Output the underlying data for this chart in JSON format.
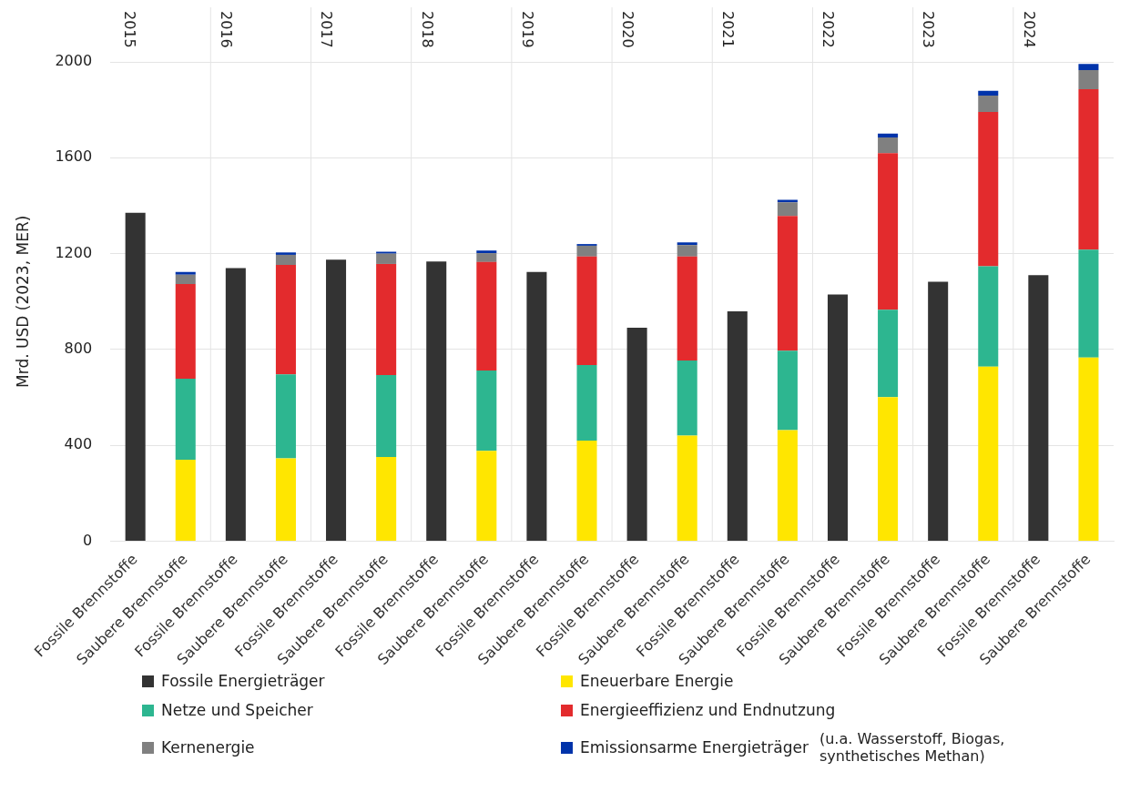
{
  "chart_data": {
    "type": "bar",
    "stacked": true,
    "ylabel": "Mrd. USD (2023, MER)",
    "categories": [
      "Fossile Brennstoffe",
      "Saubere Brennstoffe",
      "Fossile Brennstoffe",
      "Saubere Brennstoffe",
      "Fossile Brennstoffe",
      "Saubere Brennstoffe",
      "Fossile Brennstoffe",
      "Saubere Brennstoffe",
      "Fossile Brennstoffe",
      "Saubere Brennstoffe",
      "Fossile Brennstoffe",
      "Saubere Brennstoffe",
      "Fossile Brennstoffe",
      "Saubere Brennstoffe",
      "Fossile Brennstoffe",
      "Saubere Brennstoffe",
      "Fossile Brennstoffe",
      "Saubere Brennstoffe",
      "Fossile Brennstoffe",
      "Saubere Brennstoffe"
    ],
    "series": [
      {
        "name": "Fossile Energieträger",
        "color": "#333333",
        "values": [
          1370,
          null,
          1140,
          null,
          1175,
          null,
          1167,
          null,
          1124,
          null,
          891,
          null,
          959,
          null,
          1030,
          null,
          1083,
          null,
          1110,
          null
        ]
      },
      {
        "name": "Eneuerbare Energie",
        "color": "#ffe600",
        "values": [
          null,
          340,
          null,
          346,
          null,
          352,
          null,
          377,
          null,
          420,
          null,
          441,
          null,
          464,
          null,
          601,
          null,
          729,
          null,
          767
        ]
      },
      {
        "name": "Netze und Speicher",
        "color": "#2db690",
        "values": [
          null,
          338,
          null,
          350,
          null,
          341,
          null,
          335,
          null,
          315,
          null,
          313,
          null,
          331,
          null,
          365,
          null,
          418,
          null,
          450
        ]
      },
      {
        "name": "Energieeffizienz und Endnutzung",
        "color": "#e32b2d",
        "values": [
          null,
          395,
          null,
          457,
          null,
          464,
          null,
          453,
          null,
          453,
          null,
          434,
          null,
          562,
          null,
          653,
          null,
          644,
          null,
          669
        ]
      },
      {
        "name": "Kernenergie",
        "color": "#808080",
        "values": [
          null,
          39,
          null,
          42,
          null,
          43,
          null,
          37,
          null,
          45,
          null,
          48,
          null,
          57,
          null,
          66,
          null,
          68,
          null,
          80
        ]
      },
      {
        "name": "Emissionsarme Energieträger",
        "color": "#0033aa",
        "values": [
          null,
          12,
          null,
          10,
          null,
          8,
          null,
          11,
          null,
          7,
          null,
          11,
          null,
          11,
          null,
          16,
          null,
          20,
          null,
          25
        ]
      }
    ],
    "ylim": [
      0,
      2000
    ],
    "yticks": [
      0,
      400,
      800,
      1200,
      1600,
      2000
    ],
    "grid": true,
    "legend": "bottom",
    "annotations": [
      "2015",
      "2016",
      "2017",
      "2018",
      "2019",
      "2020",
      "2021",
      "2022",
      "2023",
      "2024",
      "(u.a. Wasserstoff, Biogas, synthetisches Methan)"
    ]
  }
}
